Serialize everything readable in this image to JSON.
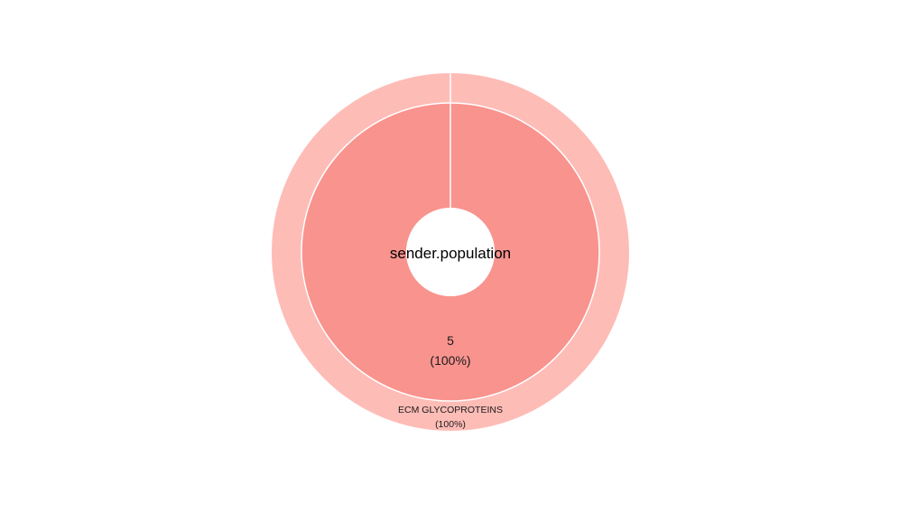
{
  "chart_data": {
    "type": "pie",
    "subtype": "nested-donut",
    "center_label": "sender.population",
    "inner_ring": {
      "slices": [
        {
          "value": 5,
          "value_label": "5",
          "percent_label": "(100%)",
          "color": "#F8938E"
        }
      ]
    },
    "outer_ring": {
      "slices": [
        {
          "name": "ECM GLYCOPROTEINS",
          "percent": 100,
          "percent_label": "(100%)",
          "color": "#FEBCB6"
        }
      ]
    },
    "separator_color": "#ffffff"
  }
}
